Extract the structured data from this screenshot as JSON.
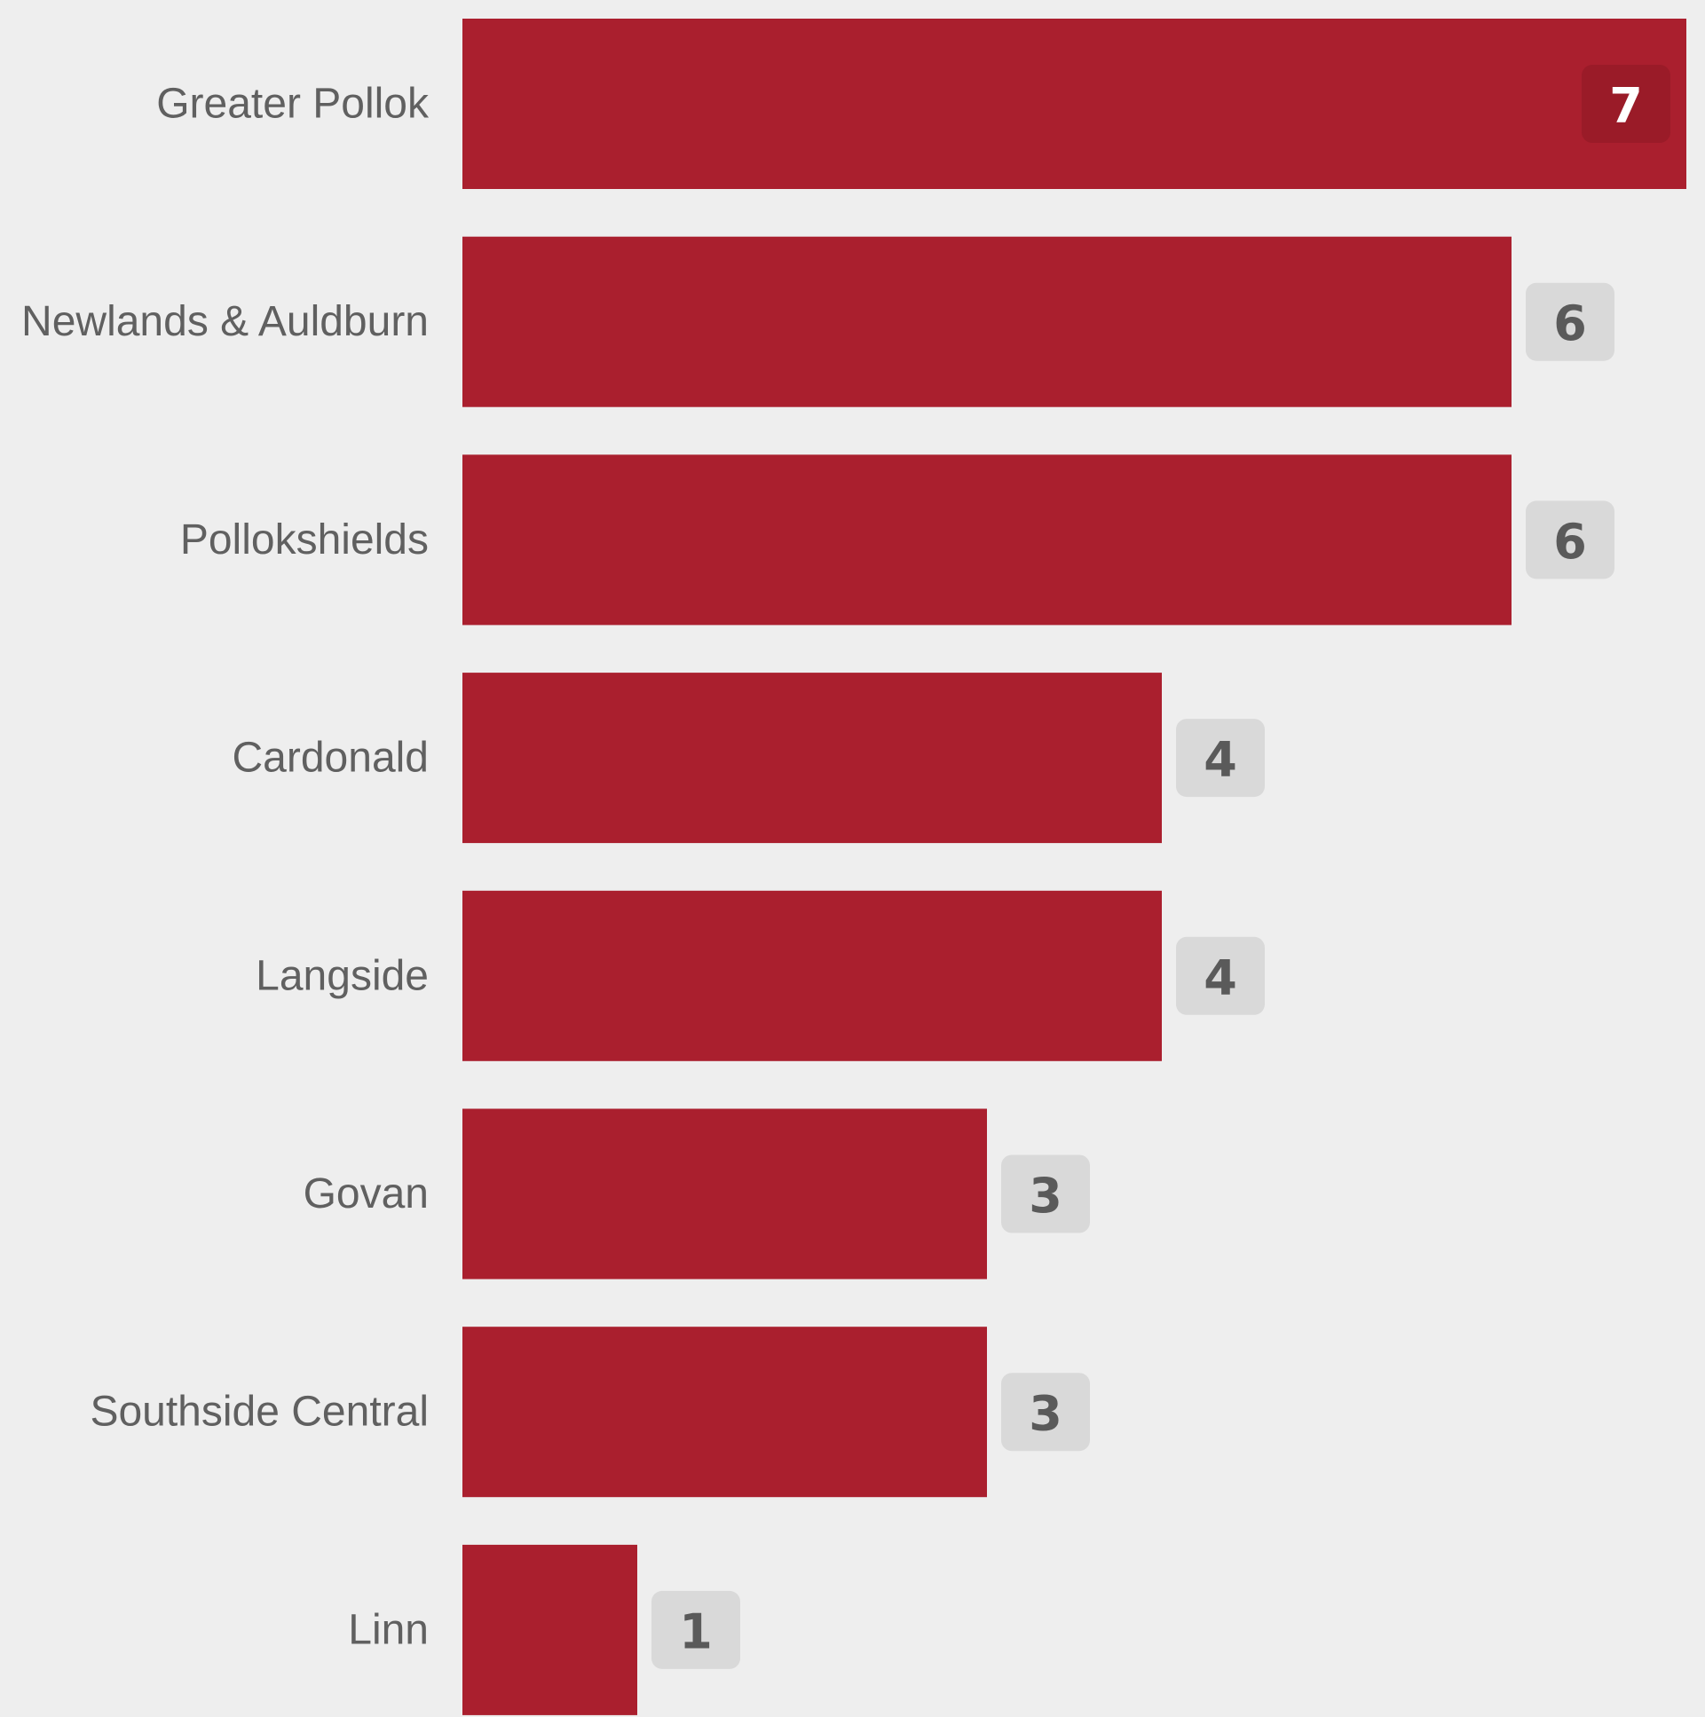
{
  "chart_data": {
    "type": "bar",
    "orientation": "horizontal",
    "title": "",
    "xlabel": "",
    "ylabel": "",
    "categories": [
      "Greater Pollok",
      "Newlands & Auldburn",
      "Pollokshields",
      "Cardonald",
      "Langside",
      "Govan",
      "Southside Central",
      "Linn"
    ],
    "values": [
      7,
      6,
      6,
      4,
      4,
      3,
      3,
      1
    ],
    "xlim": [
      0,
      7
    ],
    "grid": false,
    "legend": "none"
  },
  "colors": {
    "background": "#eeeeee",
    "bar": "#aa1f2e",
    "category_text": "#606060",
    "badge_bg": "#d9d9d9",
    "badge_text": "#5a5a5a",
    "badge_inside_bg": "#9a1b28",
    "badge_inside_text": "#ffffff"
  }
}
